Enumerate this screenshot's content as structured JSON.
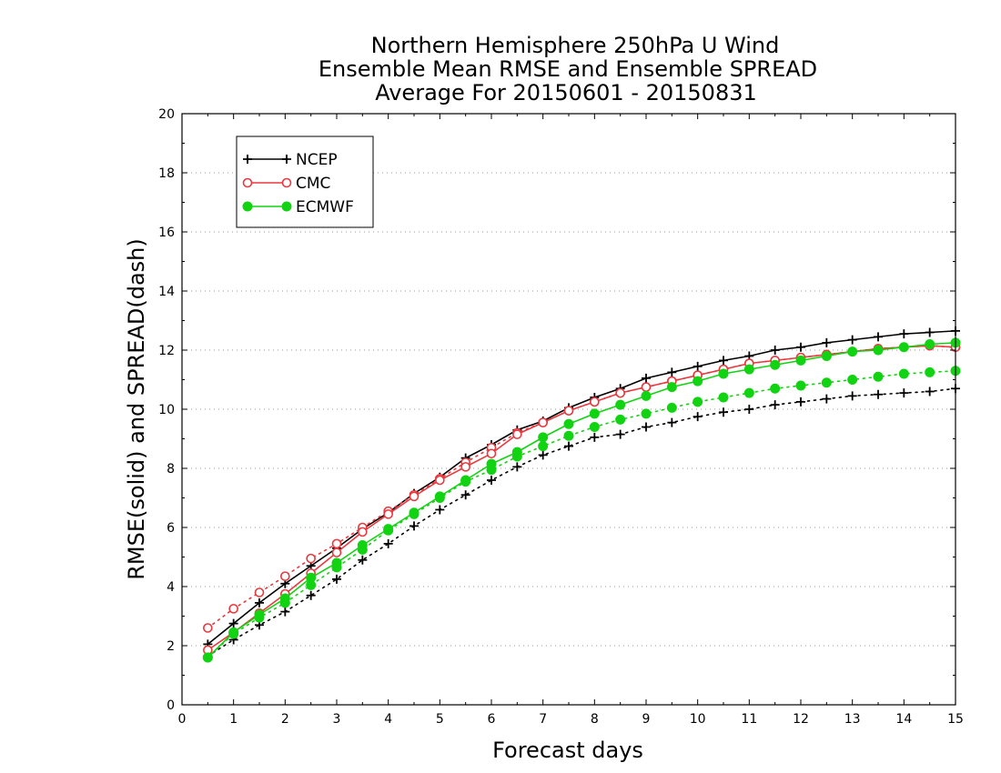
{
  "chart_data": {
    "type": "line",
    "title_lines": [
      "Northern Hemisphere 250hPa U Wind",
      "Ensemble Mean RMSE and Ensemble SPREAD",
      "Average For 20150601 - 20150831"
    ],
    "xlabel": "Forecast days",
    "ylabel": "RMSE(solid) and SPREAD(dash)",
    "xlim": [
      0,
      15
    ],
    "ylim": [
      0,
      20
    ],
    "x_ticks": [
      "0",
      "1",
      "2",
      "3",
      "4",
      "5",
      "6",
      "7",
      "8",
      "9",
      "10",
      "11",
      "12",
      "13",
      "14",
      "15"
    ],
    "y_ticks": [
      "0",
      "2",
      "4",
      "6",
      "8",
      "10",
      "12",
      "14",
      "16",
      "18",
      "20"
    ],
    "grid": "horizontal dotted",
    "legend_position": "top-left",
    "x": [
      0.5,
      1,
      1.5,
      2,
      2.5,
      3,
      3.5,
      4,
      4.5,
      5,
      5.5,
      6,
      6.5,
      7,
      7.5,
      8,
      8.5,
      9,
      9.5,
      10,
      10.5,
      11,
      11.5,
      12,
      12.5,
      13,
      13.5,
      14,
      14.5,
      15
    ],
    "series": [
      {
        "name": "NCEP",
        "color": "#000000",
        "marker": "plus",
        "rmse": [
          2.05,
          2.75,
          3.45,
          4.1,
          4.7,
          5.3,
          5.95,
          6.5,
          7.15,
          7.7,
          8.35,
          8.8,
          9.3,
          9.6,
          10.05,
          10.4,
          10.7,
          11.05,
          11.25,
          11.45,
          11.65,
          11.8,
          12.0,
          12.1,
          12.25,
          12.35,
          12.45,
          12.55,
          12.6,
          12.65
        ],
        "spread": [
          1.65,
          2.2,
          2.7,
          3.15,
          3.7,
          4.25,
          4.9,
          5.45,
          6.05,
          6.6,
          7.1,
          7.6,
          8.05,
          8.45,
          8.75,
          9.05,
          9.15,
          9.4,
          9.55,
          9.75,
          9.9,
          10.0,
          10.15,
          10.25,
          10.35,
          10.45,
          10.5,
          10.55,
          10.6,
          10.7
        ]
      },
      {
        "name": "CMC",
        "color": "#e8393f",
        "marker": "open-circle",
        "rmse": [
          1.85,
          2.45,
          3.1,
          3.75,
          4.45,
          5.15,
          5.85,
          6.45,
          7.05,
          7.6,
          8.05,
          8.5,
          9.15,
          9.55,
          9.95,
          10.25,
          10.55,
          10.75,
          10.95,
          11.15,
          11.35,
          11.55,
          11.65,
          11.75,
          11.85,
          11.95,
          12.05,
          12.1,
          12.15,
          12.1
        ],
        "spread": [
          2.6,
          3.25,
          3.8,
          4.35,
          4.95,
          5.45,
          6.0,
          6.55,
          7.1,
          7.65,
          8.2,
          8.7,
          9.2,
          9.55,
          9.95,
          10.25,
          10.55,
          10.75,
          10.95,
          11.15,
          11.35,
          11.55,
          11.65,
          11.75,
          11.85,
          11.95,
          12.05,
          12.1,
          12.15,
          12.1
        ]
      },
      {
        "name": "ECMWF",
        "color": "#12d312",
        "marker": "filled-circle",
        "rmse": [
          1.6,
          2.45,
          3.05,
          3.6,
          4.3,
          4.8,
          5.4,
          5.95,
          6.5,
          7.05,
          7.6,
          8.15,
          8.55,
          9.05,
          9.5,
          9.85,
          10.15,
          10.45,
          10.75,
          10.95,
          11.2,
          11.35,
          11.5,
          11.65,
          11.8,
          11.95,
          12.0,
          12.1,
          12.2,
          12.25
        ],
        "spread": [
          1.6,
          2.4,
          2.95,
          3.45,
          4.05,
          4.65,
          5.25,
          5.9,
          6.45,
          7.0,
          7.55,
          7.95,
          8.4,
          8.75,
          9.1,
          9.4,
          9.65,
          9.85,
          10.05,
          10.25,
          10.4,
          10.55,
          10.7,
          10.8,
          10.9,
          11.0,
          11.1,
          11.2,
          11.25,
          11.3
        ]
      }
    ]
  }
}
